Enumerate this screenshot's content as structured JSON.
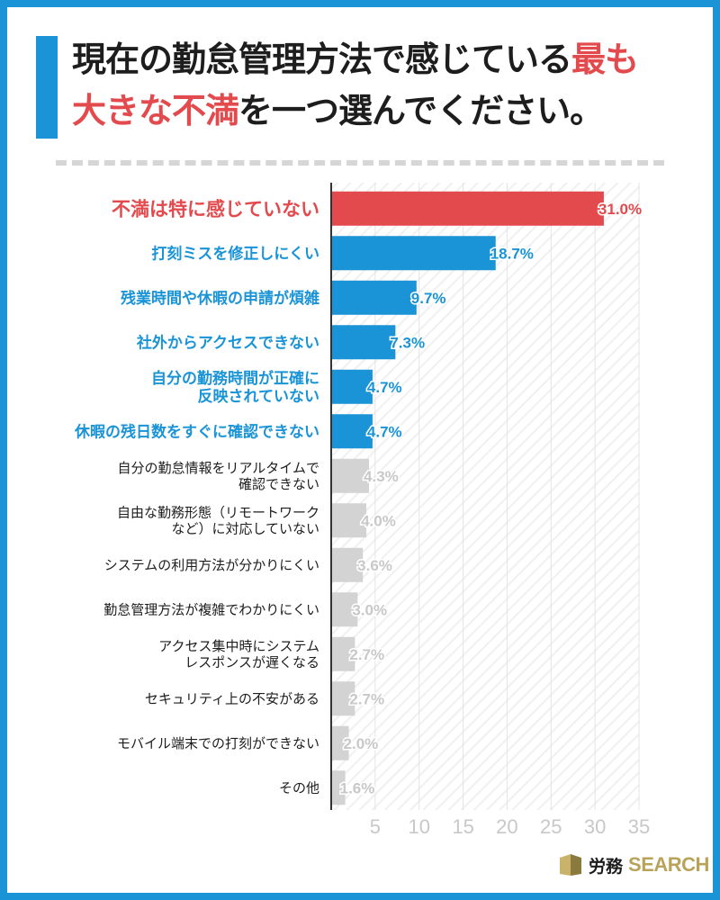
{
  "title": {
    "line1_pre": "現在の勤怠管理方法で感じている",
    "line1_hl": "最も",
    "line2_hl": "大きな不満",
    "line2_post": "を一つ選んでください。"
  },
  "logo": {
    "text_jp": "労務",
    "text_en": "SEARCH"
  },
  "colors": {
    "frame": "#1a94d6",
    "top": "#e34a4d",
    "blue": "#1a94d6",
    "gray": "#d3d3d3",
    "gray_text": "#c8c8c8"
  },
  "chart_data": {
    "type": "bar",
    "orientation": "horizontal",
    "categories": [
      [
        "不満は特に感じていない"
      ],
      [
        "打刻ミスを修正しにくい"
      ],
      [
        "残業時間や休暇の申請が煩雑"
      ],
      [
        "社外からアクセスできない"
      ],
      [
        "自分の勤務時間が正確に",
        "反映されていない"
      ],
      [
        "休暇の残日数をすぐに確認できない"
      ],
      [
        "自分の勤怠情報をリアルタイムで",
        "確認できない"
      ],
      [
        "自由な勤務形態（リモートワーク",
        "など）に対応していない"
      ],
      [
        "システムの利用方法が分かりにくい"
      ],
      [
        "勤怠管理方法が複雑でわかりにくい"
      ],
      [
        "アクセス集中時にシステム",
        "レスポンスが遅くなる"
      ],
      [
        "セキュリティ上の不安がある"
      ],
      [
        "モバイル端末での打刻ができない"
      ],
      [
        "その他"
      ]
    ],
    "values": [
      31.0,
      18.7,
      9.7,
      7.3,
      4.7,
      4.7,
      4.3,
      4.0,
      3.6,
      3.0,
      2.7,
      2.7,
      2.0,
      1.6
    ],
    "value_labels": [
      "31.0%",
      "18.7%",
      "9.7%",
      "7.3%",
      "4.7%",
      "4.7%",
      "4.3%",
      "4.0%",
      "3.6%",
      "3.0%",
      "2.7%",
      "2.7%",
      "2.0%",
      "1.6%"
    ],
    "color_groups": [
      "top",
      "blue",
      "blue",
      "blue",
      "blue",
      "blue",
      "gray",
      "gray",
      "gray",
      "gray",
      "gray",
      "gray",
      "gray",
      "gray"
    ],
    "xlim": [
      0,
      35
    ],
    "xticks": [
      "5",
      "10",
      "15",
      "20",
      "25",
      "30",
      "35"
    ],
    "xtick_values": [
      5,
      10,
      15,
      20,
      25,
      30,
      35
    ],
    "grid": true
  }
}
